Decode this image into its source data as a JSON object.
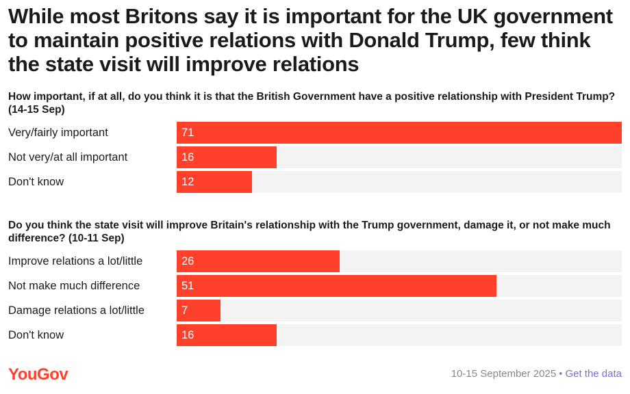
{
  "title": "While most Britons say it is important for the UK government to maintain positive relations with Donald Trump, few think the state visit will improve relations",
  "chart_data": [
    {
      "type": "bar",
      "orientation": "horizontal",
      "question": "How important, if at all, do you think it is that the British Government have a positive relationship with President Trump? (14-15 Sep)",
      "categories": [
        "Very/fairly important",
        "Not very/at all important",
        "Don't know"
      ],
      "values": [
        71,
        16,
        12
      ],
      "xlim": [
        0,
        71
      ],
      "color": "#ff412c"
    },
    {
      "type": "bar",
      "orientation": "horizontal",
      "question": "Do you think the state visit will improve Britain's relationship with the Trump government, damage it, or not make much difference? (10-11 Sep)",
      "categories": [
        "Improve relations a lot/little",
        "Not make much difference",
        "Damage relations a lot/little",
        "Don't know"
      ],
      "values": [
        26,
        51,
        7,
        16
      ],
      "xlim": [
        0,
        71
      ],
      "color": "#ff412c"
    }
  ],
  "footer": {
    "brand": "YouGov",
    "date": "10-15 September 2025",
    "separator": "•",
    "link": "Get the data"
  },
  "colors": {
    "bar": "#ff412c",
    "track": "#f3f3f3",
    "link": "#7a6fd6"
  }
}
